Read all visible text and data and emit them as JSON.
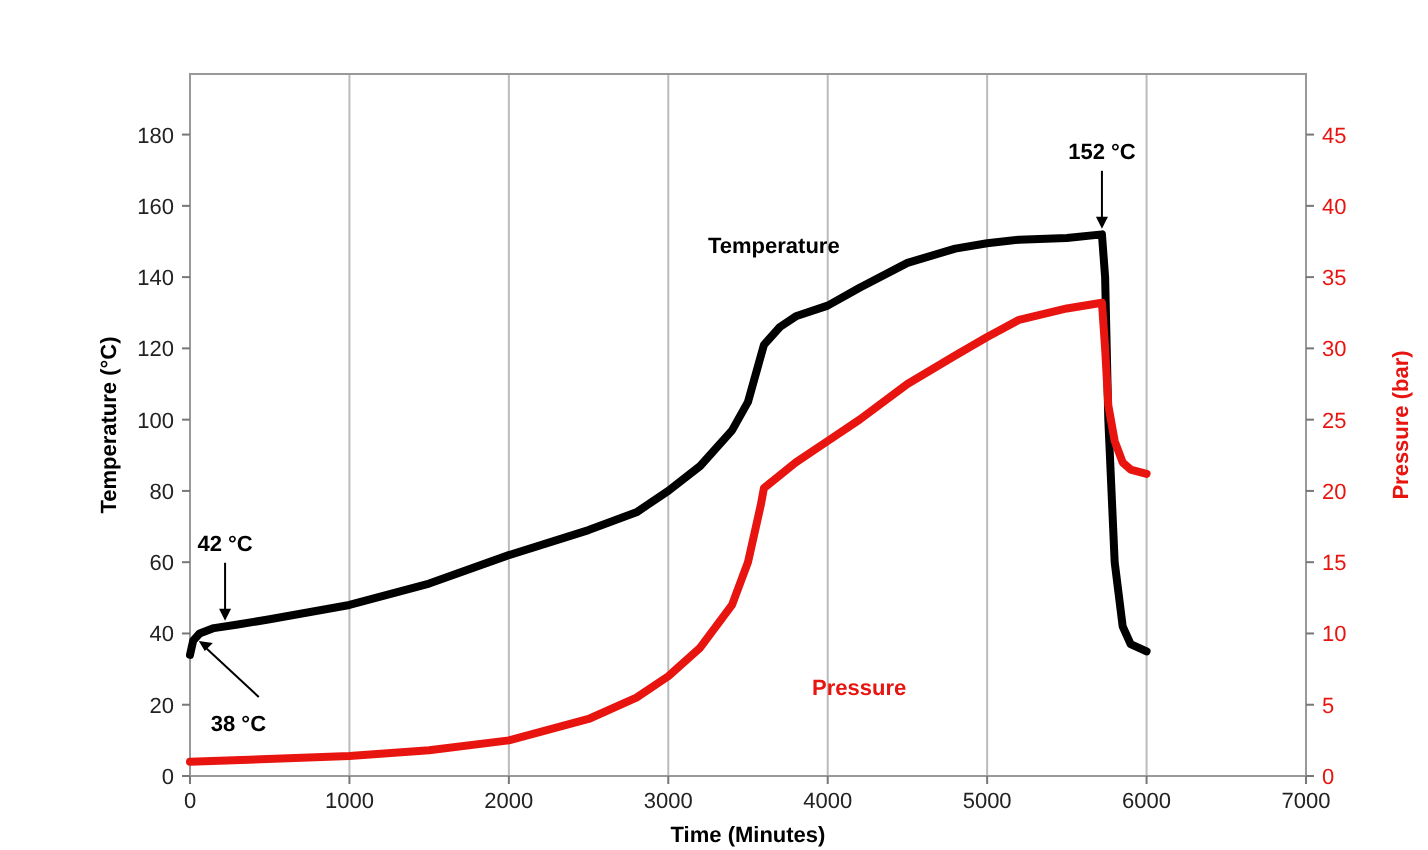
{
  "chart_data": {
    "type": "line",
    "xlabel": "Time (Minutes)",
    "ylabel": "Temperature (°C)",
    "y2label": "Pressure (bar)",
    "xlim": [
      0,
      7000
    ],
    "xticks": [
      0,
      1000,
      2000,
      3000,
      4000,
      5000,
      6000,
      7000
    ],
    "ylim": [
      0,
      197
    ],
    "yticks": [
      0,
      20,
      40,
      60,
      80,
      100,
      120,
      140,
      160,
      180
    ],
    "y2lim": [
      0,
      49.25
    ],
    "y2ticks": [
      0,
      5,
      10,
      15,
      20,
      25,
      30,
      35,
      40,
      45
    ],
    "grid": "x",
    "legend": false,
    "marker": "none",
    "line_style": "solid",
    "series": [
      {
        "name": "Temperature",
        "color": "#000000",
        "x": [
          0,
          20,
          60,
          150,
          300,
          500,
          1000,
          1500,
          2000,
          2500,
          2800,
          3000,
          3200,
          3400,
          3500,
          3600,
          3700,
          3800,
          4000,
          4200,
          4500,
          4800,
          5000,
          5200,
          5500,
          5720,
          5740,
          5760,
          5800,
          5850,
          5900,
          6000
        ],
        "values": [
          34,
          38,
          40,
          41.5,
          42.5,
          44,
          48,
          54,
          62,
          69,
          74,
          80,
          87,
          97,
          105,
          121,
          126,
          129,
          132,
          137,
          144,
          148,
          149.5,
          150.5,
          151,
          152,
          140,
          100,
          60,
          42,
          37,
          35
        ]
      },
      {
        "name": "Pressure",
        "color": "#e8140f",
        "axis": "y2",
        "x": [
          0,
          1000,
          1500,
          2000,
          2500,
          2800,
          3000,
          3200,
          3400,
          3500,
          3580,
          3600,
          3800,
          4000,
          4200,
          4500,
          4800,
          5000,
          5200,
          5500,
          5720,
          5740,
          5760,
          5800,
          5850,
          5900,
          6000
        ],
        "values": [
          1,
          1.4,
          1.8,
          2.5,
          4,
          5.5,
          7,
          9,
          12,
          15,
          19,
          20.2,
          22,
          23.5,
          25,
          27.5,
          29.5,
          30.8,
          32,
          32.8,
          33.2,
          30,
          26,
          23.5,
          22,
          21.5,
          21.2
        ]
      }
    ],
    "annotations": [
      {
        "text": "42 °C",
        "x": 220,
        "y": 43
      },
      {
        "text": "38 °C",
        "x": 30,
        "y": 39
      },
      {
        "text": "152 °C",
        "x": 5720,
        "y": 153
      }
    ]
  }
}
